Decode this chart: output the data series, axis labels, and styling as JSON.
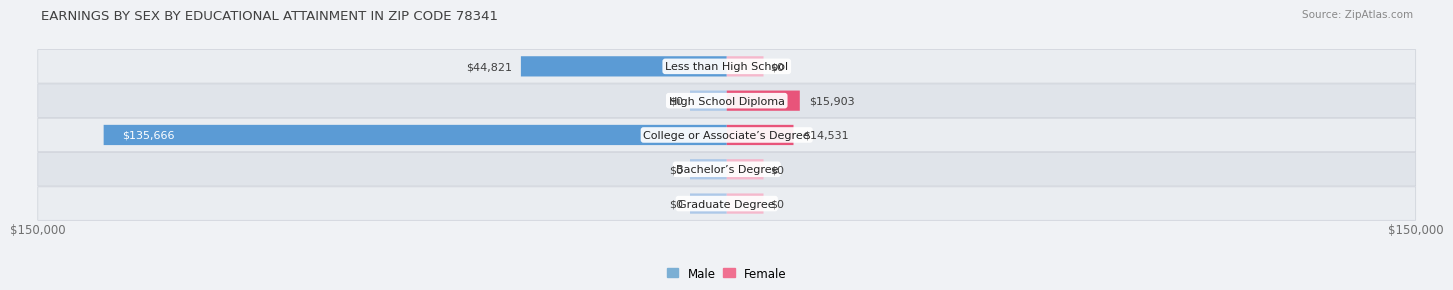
{
  "title": "EARNINGS BY SEX BY EDUCATIONAL ATTAINMENT IN ZIP CODE 78341",
  "source": "Source: ZipAtlas.com",
  "categories": [
    "Less than High School",
    "High School Diploma",
    "College or Associate’s Degree",
    "Bachelor’s Degree",
    "Graduate Degree"
  ],
  "male_values": [
    44821,
    0,
    135666,
    0,
    0
  ],
  "female_values": [
    0,
    15903,
    14531,
    0,
    0
  ],
  "max_value": 150000,
  "male_color_light": "#adc8e8",
  "male_color_dark": "#5b9bd5",
  "female_color_light": "#f5b8cc",
  "female_color_dark": "#e8547a",
  "bg_color": "#f0f2f5",
  "row_bg_even": "#eaedf1",
  "row_bg_odd": "#e0e4ea",
  "title_color": "#404040",
  "value_color_dark": "#404040",
  "value_color_white": "#ffffff",
  "axis_label_color": "#707070",
  "legend_male_color": "#7bafd4",
  "legend_female_color": "#f07090",
  "stub_size": 8000,
  "label_fontsize": 8.0,
  "title_fontsize": 9.5
}
